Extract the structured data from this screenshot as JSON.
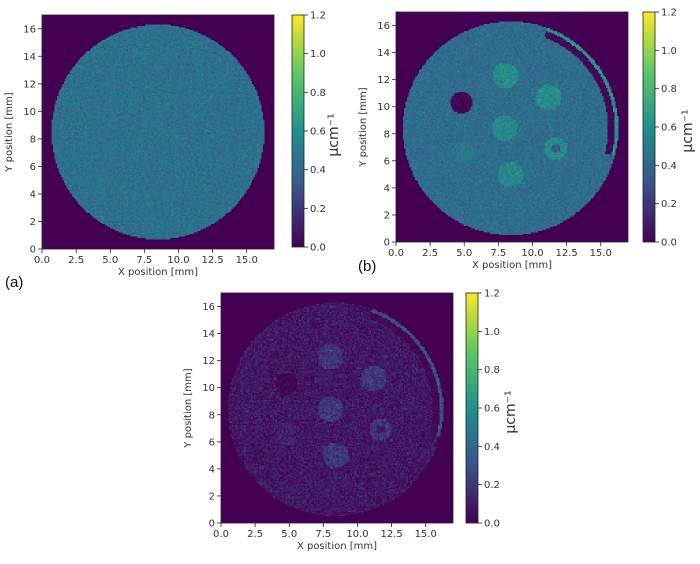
{
  "panel_labels": {
    "a": "(a)",
    "b": "(b)",
    "c": ""
  },
  "colormap": {
    "name": "viridis",
    "stops": [
      "#440154",
      "#3b528b",
      "#21908d",
      "#5dc963",
      "#fde725"
    ],
    "background": "#440154"
  },
  "chart_data": [
    {
      "type": "heatmap",
      "panel": "a",
      "title": "",
      "xlabel": "X position [mm]",
      "ylabel": "Y position [mm]",
      "xlim": [
        0,
        17
      ],
      "ylim": [
        0,
        17
      ],
      "xticks": [
        "0.0",
        "2.5",
        "5.0",
        "7.5",
        "10.0",
        "12.5",
        "15.0"
      ],
      "yticks": [
        "0",
        "2",
        "4",
        "6",
        "8",
        "10",
        "12",
        "14",
        "16"
      ],
      "colorbar": {
        "label": "µcm⁻¹",
        "ticks": [
          "0.0",
          "0.2",
          "0.4",
          "0.6",
          "0.8",
          "1.0",
          "1.2"
        ],
        "vmin": 0,
        "vmax": 1.2
      },
      "background_value": 0,
      "disk": {
        "center": [
          8.5,
          8.5
        ],
        "radius_mm": 7.8,
        "value": 0.45
      },
      "inserts": [],
      "ring": null,
      "noise": 0.05
    },
    {
      "type": "heatmap",
      "panel": "b",
      "title": "",
      "xlabel": "X position [mm]",
      "ylabel": "Y position [mm]",
      "xlim": [
        0,
        17
      ],
      "ylim": [
        0,
        17
      ],
      "xticks": [
        "0.0",
        "2.5",
        "5.0",
        "7.5",
        "10.0",
        "12.5",
        "15.0"
      ],
      "yticks": [
        "0",
        "2",
        "4",
        "6",
        "8",
        "10",
        "12",
        "14",
        "16"
      ],
      "colorbar": {
        "label": "µcm⁻¹",
        "ticks": [
          "0.0",
          "0.2",
          "0.4",
          "0.6",
          "0.8",
          "1.0",
          "1.2"
        ],
        "vmin": 0,
        "vmax": 1.2
      },
      "background_value": 0,
      "disk": {
        "center": [
          8.4,
          8.4
        ],
        "radius_mm": 7.9,
        "value": 0.43
      },
      "inserts": [
        {
          "center": [
            8.0,
            12.3
          ],
          "radius_mm": 0.95,
          "value": 0.58
        },
        {
          "center": [
            11.2,
            10.7
          ],
          "radius_mm": 0.95,
          "value": 0.58
        },
        {
          "center": [
            4.8,
            10.3
          ],
          "radius_mm": 0.8,
          "value": 0.02
        },
        {
          "center": [
            8.0,
            8.4
          ],
          "radius_mm": 0.95,
          "value": 0.56
        },
        {
          "center": [
            4.9,
            6.6
          ],
          "radius_mm": 0.85,
          "value": 0.48
        },
        {
          "center": [
            11.7,
            6.9
          ],
          "radius_mm": 0.85,
          "value": 0.58,
          "core_value": 0.35,
          "core_radius_mm": 0.35
        },
        {
          "center": [
            8.4,
            5.0
          ],
          "radius_mm": 0.95,
          "value": 0.56
        }
      ],
      "ring": {
        "center": [
          8.4,
          8.4
        ],
        "inner_radius_mm": 7.15,
        "outer_radius_mm": 7.65,
        "start_deg": -15,
        "end_deg": 70,
        "value": 0.02,
        "edge_value": 0.62
      },
      "noise": 0.05
    },
    {
      "type": "heatmap",
      "panel": "c",
      "title": "",
      "xlabel": "X position [mm]",
      "ylabel": "Y position [mm]",
      "xlim": [
        0,
        17
      ],
      "ylim": [
        0,
        17
      ],
      "xticks": [
        "0.0",
        "2.5",
        "5.0",
        "7.5",
        "10.0",
        "12.5",
        "15.0"
      ],
      "yticks": [
        "0",
        "2",
        "4",
        "6",
        "8",
        "10",
        "12",
        "14",
        "16"
      ],
      "colorbar": {
        "label": "µcm⁻¹",
        "ticks": [
          "0.0",
          "0.2",
          "0.4",
          "0.6",
          "0.8",
          "1.0",
          "1.2"
        ],
        "vmin": 0,
        "vmax": 1.2
      },
      "background_value": 0,
      "disk": {
        "center": [
          8.4,
          8.4
        ],
        "radius_mm": 7.9,
        "value": 0.08
      },
      "inserts": [
        {
          "center": [
            8.0,
            12.3
          ],
          "radius_mm": 0.95,
          "value": 0.2
        },
        {
          "center": [
            11.2,
            10.7
          ],
          "radius_mm": 0.95,
          "value": 0.2
        },
        {
          "center": [
            4.8,
            10.3
          ],
          "radius_mm": 0.8,
          "value": 0.0
        },
        {
          "center": [
            8.0,
            8.4
          ],
          "radius_mm": 0.95,
          "value": 0.2
        },
        {
          "center": [
            4.9,
            6.6
          ],
          "radius_mm": 0.85,
          "value": 0.12
        },
        {
          "center": [
            11.7,
            6.9
          ],
          "radius_mm": 0.85,
          "value": 0.2,
          "core_value": 0.08,
          "core_radius_mm": 0.35
        },
        {
          "center": [
            8.4,
            5.0
          ],
          "radius_mm": 0.95,
          "value": 0.2
        }
      ],
      "ring": {
        "center": [
          8.4,
          8.4
        ],
        "inner_radius_mm": 7.15,
        "outer_radius_mm": 7.65,
        "start_deg": -15,
        "end_deg": 70,
        "value": 0.02,
        "edge_value": 0.3
      },
      "noise": 0.06
    }
  ]
}
